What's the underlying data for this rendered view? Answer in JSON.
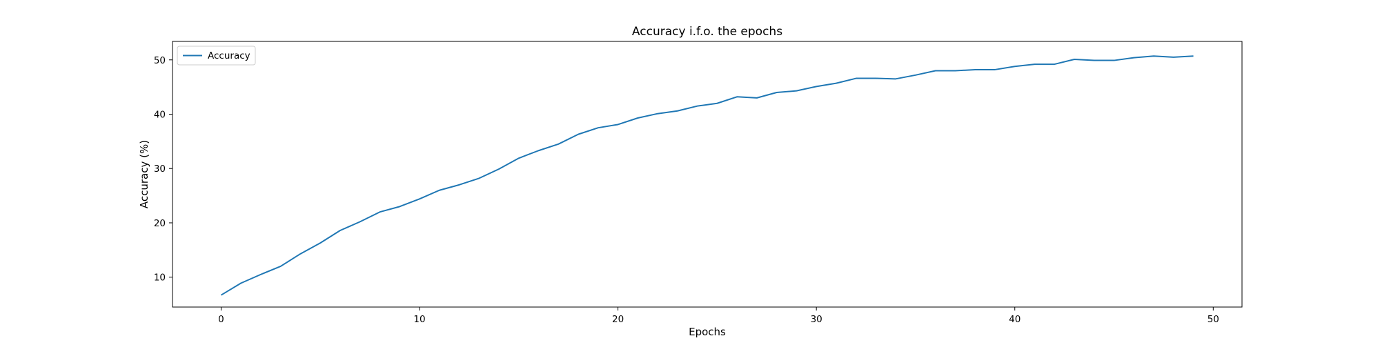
{
  "chart_data": {
    "type": "line",
    "title": "Accuracy i.f.o. the epochs",
    "xlabel": "Epochs",
    "ylabel": "Accuracy (%)",
    "xlim": [
      -2.45,
      51.45
    ],
    "ylim": [
      4.5,
      53.4
    ],
    "xticks": [
      0,
      10,
      20,
      30,
      40,
      50
    ],
    "yticks": [
      10,
      20,
      30,
      40,
      50
    ],
    "grid": false,
    "legend_position": "top-left",
    "x": [
      0,
      1,
      2,
      3,
      4,
      5,
      6,
      7,
      8,
      9,
      10,
      11,
      12,
      13,
      14,
      15,
      16,
      17,
      18,
      19,
      20,
      21,
      22,
      23,
      24,
      25,
      26,
      27,
      28,
      29,
      30,
      31,
      32,
      33,
      34,
      35,
      36,
      37,
      38,
      39,
      40,
      41,
      42,
      43,
      44,
      45,
      46,
      47,
      48,
      49
    ],
    "series": [
      {
        "name": "Accuracy",
        "color": "#1f77b4",
        "values": [
          6.7,
          8.9,
          10.5,
          12.0,
          14.3,
          16.3,
          18.6,
          20.2,
          22.0,
          23.0,
          24.4,
          26.0,
          27.0,
          28.2,
          29.9,
          31.9,
          33.3,
          34.5,
          36.3,
          37.5,
          38.1,
          39.3,
          40.1,
          40.6,
          41.5,
          42.0,
          43.2,
          43.0,
          44.0,
          44.3,
          45.1,
          45.7,
          46.6,
          46.6,
          46.5,
          47.2,
          48.0,
          48.0,
          48.2,
          48.2,
          48.8,
          49.2,
          49.2,
          50.1,
          49.9,
          49.9,
          50.4,
          50.7,
          50.5,
          50.7
        ]
      }
    ]
  }
}
